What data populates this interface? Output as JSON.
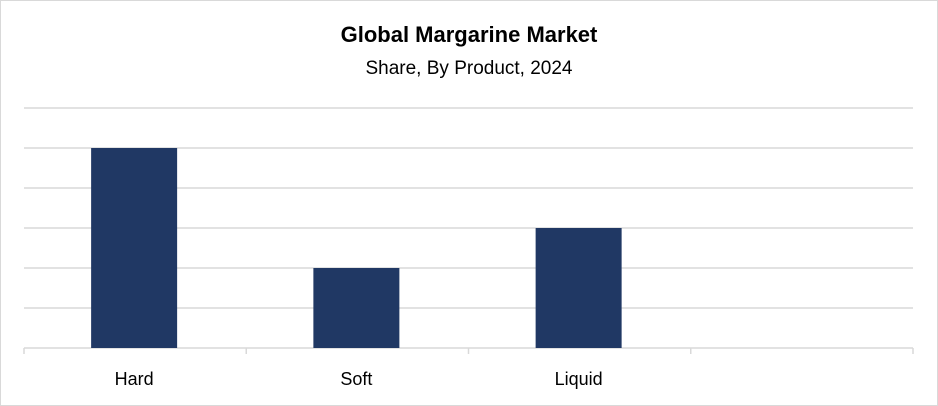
{
  "chart_data": {
    "type": "bar",
    "title": "Global Margarine Market",
    "subtitle": "Share, By Product, 2024",
    "categories": [
      "Hard",
      "Soft",
      "Liquid",
      ""
    ],
    "values": [
      5,
      2,
      3,
      null
    ],
    "xlabel": "",
    "ylabel": "",
    "ylim": [
      0,
      6
    ],
    "grid": true,
    "legend": "none",
    "bar_color": "#203864",
    "grid_color": "#d9d9d9"
  }
}
